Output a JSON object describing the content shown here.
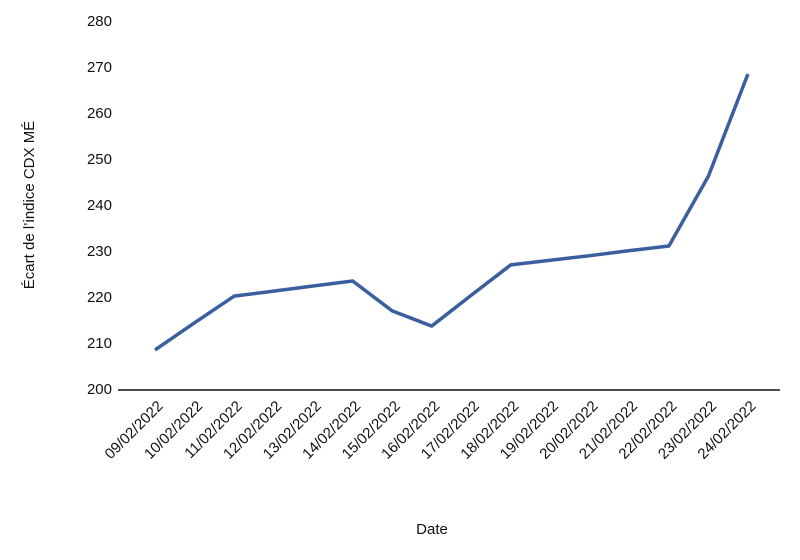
{
  "chart_data": {
    "type": "line",
    "x_label": "Date",
    "y_label": "Écart de l’indice CDX MÉ",
    "categories": [
      "09/02/2022",
      "10/02/2022",
      "11/02/2022",
      "12/02/2022",
      "13/02/2022",
      "14/02/2022",
      "15/02/2022",
      "16/02/2022",
      "17/02/2022",
      "18/02/2022",
      "19/02/2022",
      "20/02/2022",
      "21/02/2022",
      "22/02/2022",
      "23/02/2022",
      "24/02/2022"
    ],
    "series": [
      {
        "name": "CDX MÉ",
        "color": "#3a5f9e",
        "values": [
          208.7,
          214.6,
          220.4,
          221.5,
          222.6,
          223.7,
          217.2,
          213.9,
          220.6,
          227.2,
          228.2,
          229.2,
          230.3,
          231.3,
          246.5,
          268.7
        ]
      }
    ],
    "ylim": [
      200,
      280
    ],
    "yticks": [
      200,
      210,
      220,
      230,
      240,
      250,
      260,
      270,
      280
    ],
    "grid": false
  }
}
